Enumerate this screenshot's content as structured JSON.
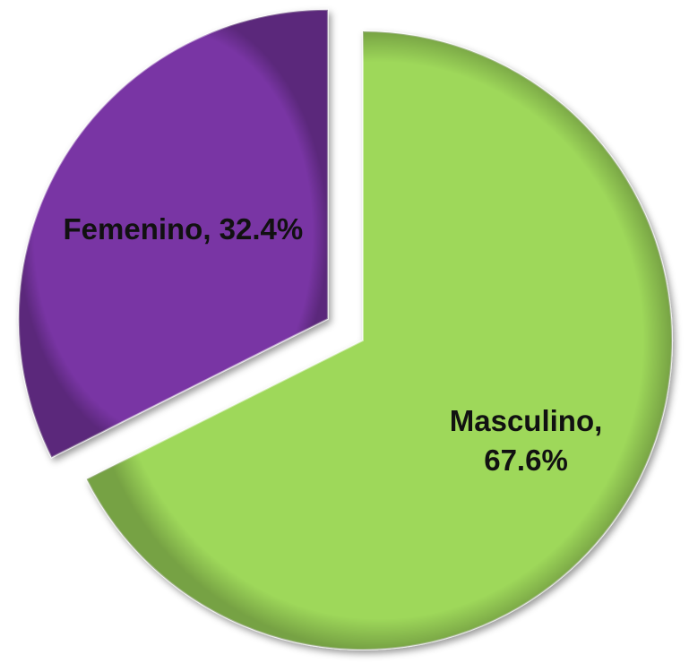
{
  "chart_data": {
    "type": "pie",
    "categories": [
      "Masculino",
      "Femenino"
    ],
    "values": [
      67.6,
      32.4
    ],
    "value_labels": [
      "Masculino, 67.6%",
      "Femenino, 32.4%"
    ],
    "colors": [
      "#9ed85a",
      "#7934a4"
    ],
    "exploded": [
      false,
      true
    ]
  }
}
